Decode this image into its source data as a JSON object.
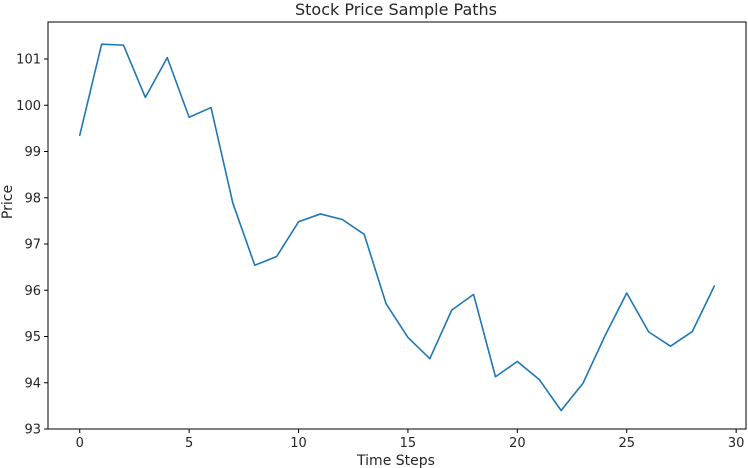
{
  "chart_data": {
    "type": "line",
    "title": "Stock Price Sample Paths",
    "xlabel": "Time Steps",
    "ylabel": "Price",
    "xlim": [
      -1.45,
      30.45
    ],
    "ylim": [
      93,
      101.8
    ],
    "xticks": [
      0,
      5,
      10,
      15,
      20,
      25,
      30
    ],
    "yticks": [
      93,
      94,
      95,
      96,
      97,
      98,
      99,
      100,
      101
    ],
    "grid": false,
    "series": [
      {
        "color": "#1f77b4",
        "x": [
          0,
          1,
          2,
          3,
          4,
          5,
          6,
          7,
          8,
          9,
          10,
          11,
          12,
          13,
          14,
          15,
          16,
          17,
          18,
          19,
          20,
          21,
          22,
          23,
          24,
          25,
          26,
          27,
          28,
          29
        ],
        "y": [
          99.35,
          101.32,
          101.3,
          100.17,
          101.03,
          99.74,
          99.95,
          97.88,
          96.54,
          96.73,
          97.48,
          97.65,
          97.53,
          97.21,
          95.71,
          94.98,
          94.52,
          95.57,
          95.91,
          94.13,
          94.46,
          94.07,
          93.4,
          93.99,
          95.01,
          95.94,
          95.1,
          94.79,
          95.11,
          96.09
        ]
      }
    ]
  }
}
